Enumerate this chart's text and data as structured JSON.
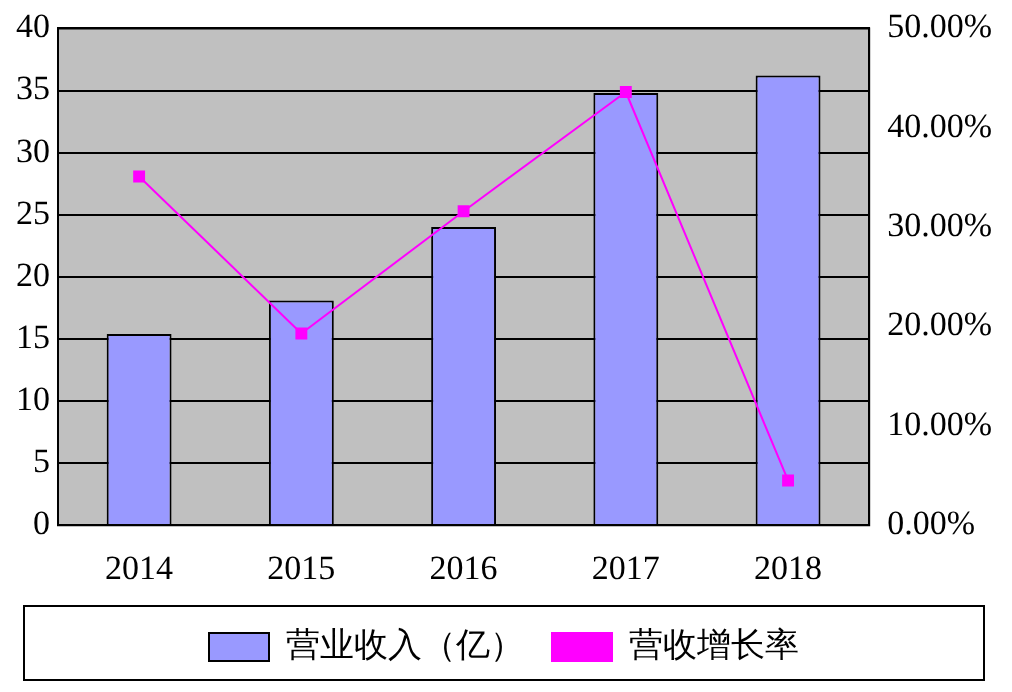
{
  "chart_data": {
    "type": "bar",
    "categories": [
      "2014",
      "2015",
      "2016",
      "2017",
      "2018"
    ],
    "series": [
      {
        "name": "营业收入（亿）",
        "color": "#9999ff",
        "values": [
          15.4,
          18.1,
          24.0,
          34.8,
          36.2
        ]
      },
      {
        "name": "营收增长率",
        "type": "line",
        "axis": "y2",
        "color": "#ff00ff",
        "marker": "square",
        "values": [
          35.1,
          19.3,
          31.6,
          43.6,
          4.5
        ]
      }
    ],
    "ylim": [
      0,
      40
    ],
    "yticks": [
      0,
      5,
      10,
      15,
      20,
      25,
      30,
      35,
      40
    ],
    "y2lim": [
      0,
      50
    ],
    "y2ticks": [
      {
        "value": 0,
        "label": "0.00%"
      },
      {
        "value": 10,
        "label": "10.00%"
      },
      {
        "value": 20,
        "label": "20.00%"
      },
      {
        "value": 30,
        "label": "30.00%"
      },
      {
        "value": 40,
        "label": "40.00%"
      },
      {
        "value": 50,
        "label": "50.00%"
      }
    ],
    "grid": "y",
    "legend": "bottom"
  }
}
